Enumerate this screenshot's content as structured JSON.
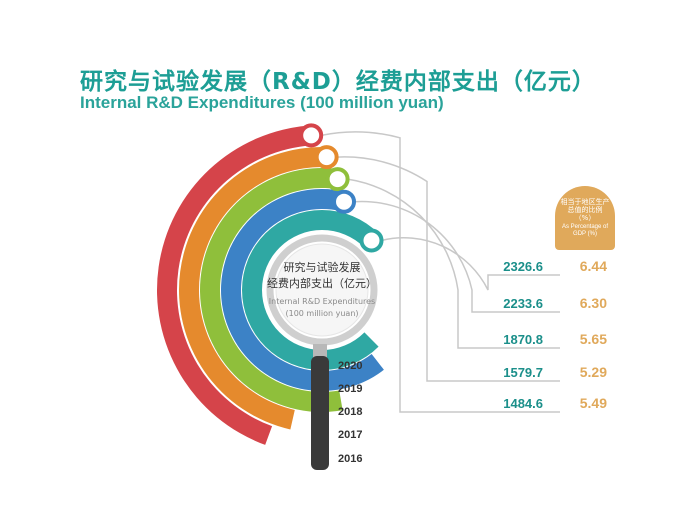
{
  "title_cn": "研究与试验发展（R&D）经费内部支出（亿元）",
  "title_en": "Internal R&D Expenditures (100 million yuan)",
  "center_label": {
    "cn_line1": "研究与试验发展",
    "cn_line2": "经费内部支出（亿元）",
    "en_line1": "Internal R&D Expenditures",
    "en_line2": "(100 million yuan)"
  },
  "gdp_header": {
    "cn": "相当于地区生产总值的比例（%）",
    "en": "As Percentage of GDP (%)"
  },
  "colors": {
    "title": "#1d9e95",
    "expenditure_text": "#1b8f8a",
    "gdp_text": "#e0a95b",
    "year_text": "#333333",
    "connector": "#c8c8c8",
    "handle": "#3a3a3a",
    "lens_ring": "#cfcfcf"
  },
  "chart_data": {
    "type": "radial-bar",
    "title": "研究与试验发展（R&D）经费内部支出（亿元）",
    "subtitle": "Internal R&D Expenditures (100 million yuan)",
    "categories": [
      "2016",
      "2017",
      "2018",
      "2019",
      "2020"
    ],
    "series": [
      {
        "name": "研究与试验发展经费内部支出（亿元）",
        "values": [
          1484.6,
          1579.7,
          1870.8,
          2233.6,
          2326.6
        ],
        "labels": [
          "1484.6",
          "1579.7",
          "1870.8",
          "2233.6",
          "2326.6"
        ],
        "colors": [
          "#d5444a",
          "#e58a2d",
          "#8fbf3b",
          "#3c82c6",
          "#2fa8a3"
        ]
      },
      {
        "name": "相当于地区生产总值的比例（%）",
        "values": [
          5.49,
          5.29,
          5.65,
          6.3,
          6.44
        ],
        "labels": [
          "5.49",
          "5.29",
          "5.65",
          "6.30",
          "6.44"
        ]
      }
    ],
    "legend": "none",
    "grid": false
  }
}
